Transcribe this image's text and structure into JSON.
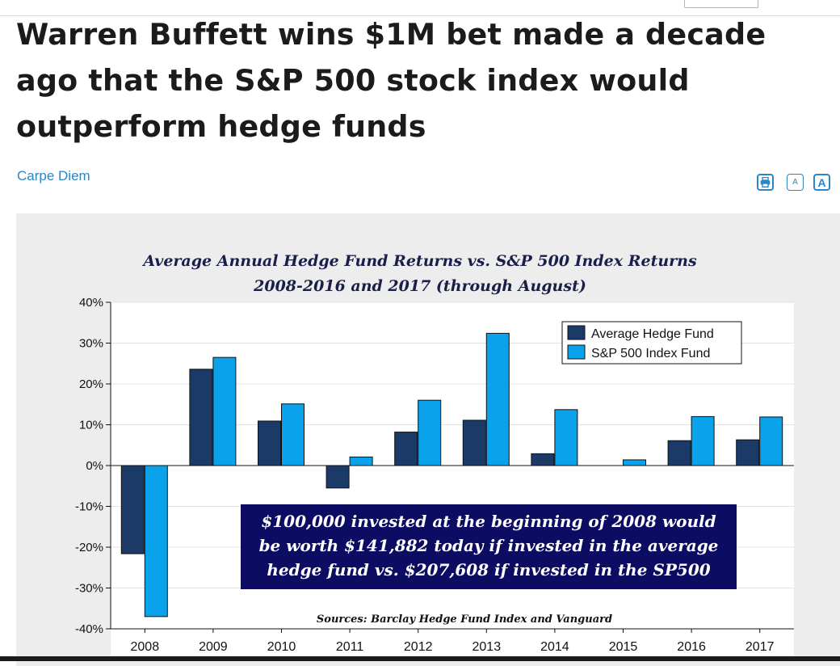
{
  "article": {
    "title": "Warren Buffett wins $1M bet made a decade ago that the S&P 500 stock index would outperform hedge funds",
    "author": "Carpe Diem"
  },
  "toolbar": {
    "print_icon": "printer-icon",
    "font_small_label": "A",
    "font_large_label": "A"
  },
  "colors": {
    "hedge": "#1b3a68",
    "sp500": "#0aa2ea",
    "link": "#2a86c6",
    "callout_bg": "#0c0c63"
  },
  "chart_data": {
    "type": "bar",
    "title_line1": "Average Annual Hedge Fund Returns vs. S&P 500 Index Returns",
    "title_line2": "2008-2016 and 2017 (through August)",
    "categories": [
      "2008",
      "2009",
      "2010",
      "2011",
      "2012",
      "2013",
      "2014",
      "2015",
      "2016",
      "2017"
    ],
    "series": [
      {
        "name": "Average Hedge Fund",
        "values": [
          -21.6,
          23.6,
          10.9,
          -5.5,
          8.2,
          11.1,
          2.9,
          0,
          6.1,
          6.3
        ]
      },
      {
        "name": "S&P 500 Index Fund",
        "values": [
          -37.0,
          26.5,
          15.1,
          2.1,
          16.0,
          32.4,
          13.7,
          1.4,
          12.0,
          11.9
        ]
      }
    ],
    "ylim": [
      -40,
      40
    ],
    "yticks": [
      "40%",
      "30%",
      "20%",
      "10%",
      "0%",
      "-10%",
      "-20%",
      "-30%",
      "-40%"
    ],
    "ytick_values": [
      40,
      30,
      20,
      10,
      0,
      -10,
      -20,
      -30,
      -40
    ],
    "legend_position": "top-right",
    "grid": true,
    "callout": [
      "$100,000 invested at the beginning of 2008 would",
      "be worth $141,882 today if invested in the average",
      "hedge fund vs. $207,608 if invested in the SP500"
    ],
    "source": "Sources: Barclay Hedge Fund Index and Vanguard"
  }
}
